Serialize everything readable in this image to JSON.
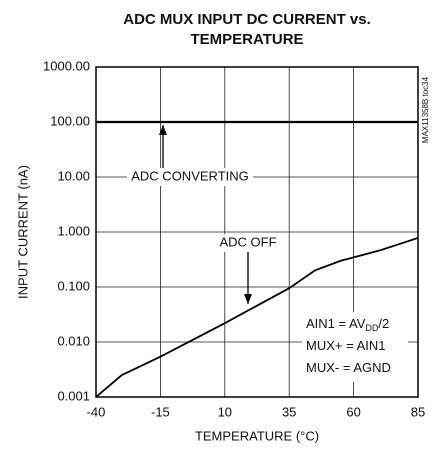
{
  "chart_data": {
    "type": "line",
    "title_lines": [
      "ADC MUX INPUT DC CURRENT vs.",
      "TEMPERATURE"
    ],
    "x_label": "TEMPERATURE (°C)",
    "y_label": "INPUT CURRENT (nA)",
    "watermark": "MAX11358B toc34",
    "x": [
      -40,
      -30,
      -15,
      10,
      35,
      45,
      55,
      70,
      85
    ],
    "series": [
      {
        "name": "ADC CONVERTING",
        "color": "#000000",
        "values": [
          100,
          100,
          100,
          100,
          100,
          100,
          100,
          100,
          100
        ]
      },
      {
        "name": "ADC OFF",
        "color": "#000000",
        "values": [
          0.001,
          0.0025,
          0.0054,
          0.022,
          0.095,
          0.2,
          0.3,
          0.46,
          0.78
        ]
      }
    ],
    "conditions": [
      [
        "AIN1 = AV",
        "DD",
        "/2"
      ],
      [
        "MUX+ = AIN1"
      ],
      [
        "MUX- = AGND"
      ]
    ],
    "xlim": [
      -40,
      85
    ],
    "xticks": [
      -40,
      -15,
      10,
      35,
      60,
      85
    ],
    "ylim": [
      0.001,
      1000
    ],
    "log_y": true,
    "yticks": [
      {
        "value": 0.001,
        "label": "0.001"
      },
      {
        "value": 0.01,
        "label": "0.010"
      },
      {
        "value": 0.1,
        "label": "0.100"
      },
      {
        "value": 1,
        "label": "1.000"
      },
      {
        "value": 10,
        "label": "10.00"
      },
      {
        "value": 100,
        "label": "100.00"
      },
      {
        "value": 1000,
        "label": "1000.00"
      }
    ],
    "grid": true
  }
}
